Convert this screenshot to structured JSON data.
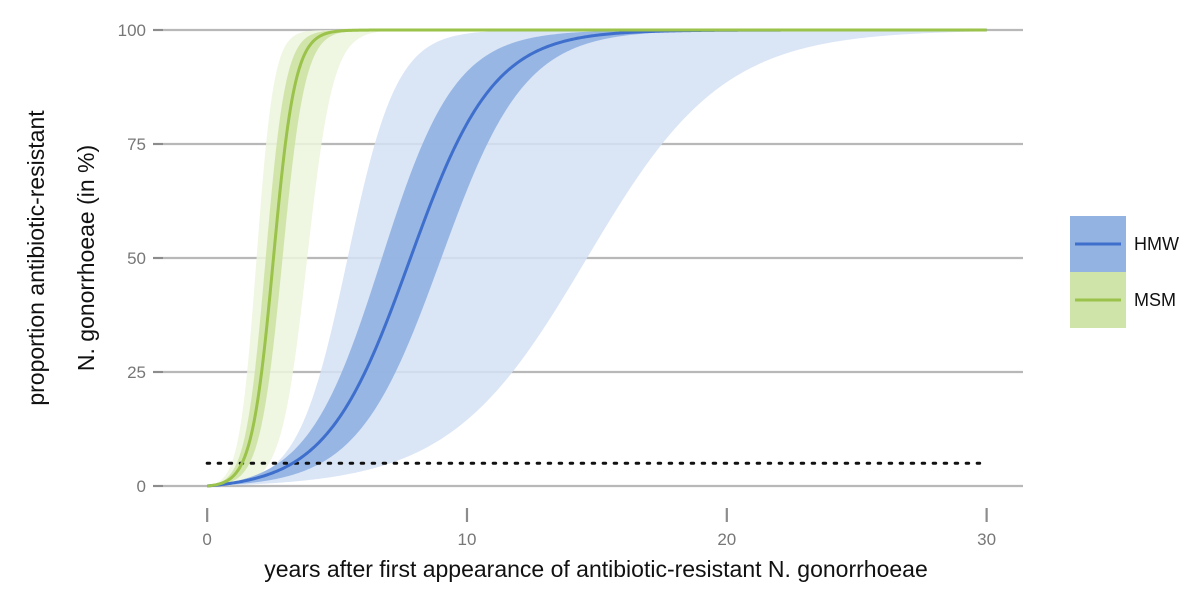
{
  "chart_data": {
    "type": "area",
    "xlabel": "years after first appearance of antibiotic-resistant N. gonorrhoeae",
    "ylabel_lines": [
      "proportion antibiotic-resistant",
      "N. gonorrhoeae (in %)"
    ],
    "xlim": [
      -1.7,
      31.4
    ],
    "ylim": [
      0,
      100
    ],
    "x_ticks": [
      0,
      10,
      20,
      30
    ],
    "y_ticks": [
      0,
      25,
      50,
      75,
      100
    ],
    "grid": "horizontal",
    "legend_position": "right",
    "threshold": {
      "y": 5,
      "x_range": [
        0,
        30
      ],
      "style": "dotted"
    },
    "curve_x_range": [
      0,
      30
    ],
    "series": [
      {
        "name": "HMW",
        "color": "#3f6fcc",
        "band_inner_color": "#93b3e3",
        "band_outer_color": "#d4e1f4",
        "median": {
          "midpoint": 7.8,
          "slope": 0.62
        },
        "inner": {
          "lower": {
            "midpoint": 9.0,
            "slope": 0.62
          },
          "upper": {
            "midpoint": 6.7,
            "slope": 0.7
          }
        },
        "outer": {
          "lower": {
            "midpoint": 14.6,
            "slope": 0.38
          },
          "upper": {
            "midpoint": 5.4,
            "slope": 1.05
          }
        }
      },
      {
        "name": "MSM",
        "color": "#9bc24a",
        "band_inner_color": "#cfe4a8",
        "band_outer_color": "#ecf4dd",
        "median": {
          "midpoint": 2.55,
          "slope": 2.4
        },
        "inner": {
          "lower": {
            "midpoint": 2.9,
            "slope": 2.3
          },
          "upper": {
            "midpoint": 2.25,
            "slope": 2.6
          }
        },
        "outer": {
          "lower": {
            "midpoint": 3.85,
            "slope": 2.0
          },
          "upper": {
            "midpoint": 1.9,
            "slope": 3.0
          }
        }
      }
    ]
  }
}
